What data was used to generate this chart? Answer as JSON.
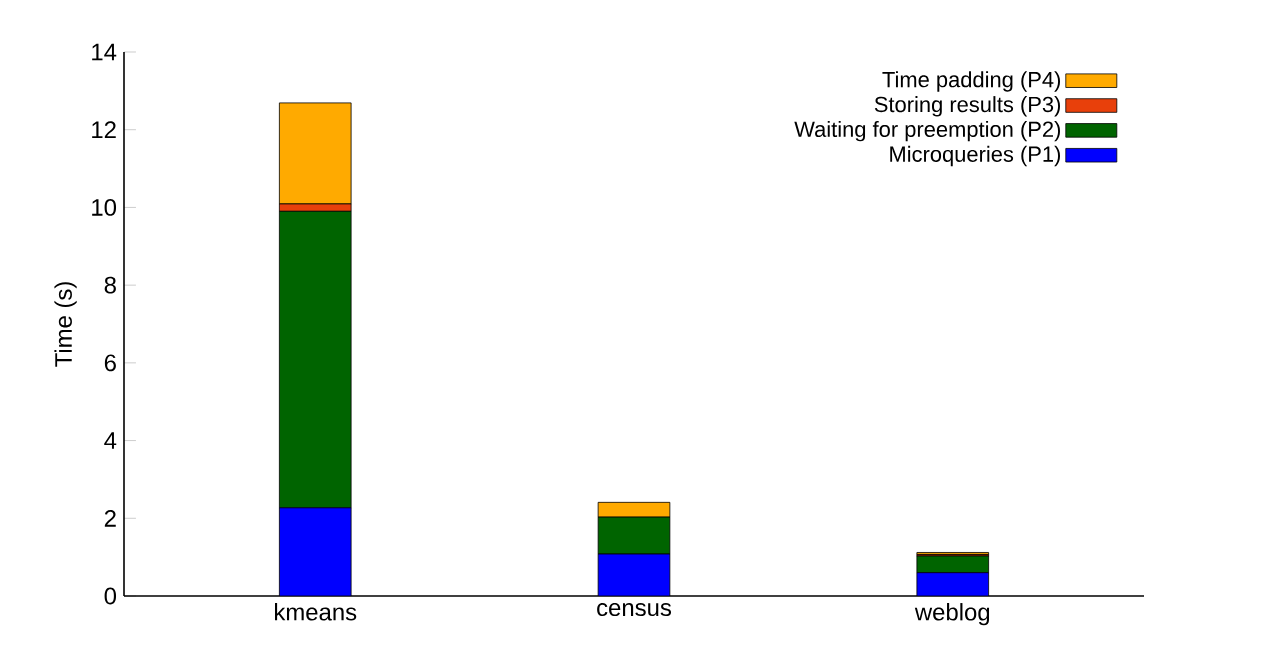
{
  "chart_data": {
    "type": "bar",
    "stacked": true,
    "ylabel": "Time (s)",
    "categories": [
      "kmeans",
      "census",
      "weblog"
    ],
    "series": [
      {
        "name": "Microqueries (P1)",
        "color": "#0000ff",
        "values": [
          2.27,
          1.08,
          0.6
        ]
      },
      {
        "name": "Waiting for preemption (P2)",
        "color": "#006400",
        "values": [
          7.63,
          0.95,
          0.43
        ]
      },
      {
        "name": "Storing results (P3)",
        "color": "#e8400b",
        "values": [
          0.19,
          null,
          0.04
        ]
      },
      {
        "name": "Time padding (P4)",
        "color": "#ffaa00",
        "values": [
          2.6,
          0.38,
          0.05
        ]
      }
    ],
    "ylim": [
      0,
      14
    ],
    "yticks": [
      0,
      2,
      4,
      6,
      8,
      10,
      12,
      14
    ],
    "legend": "top right",
    "grid": false
  }
}
